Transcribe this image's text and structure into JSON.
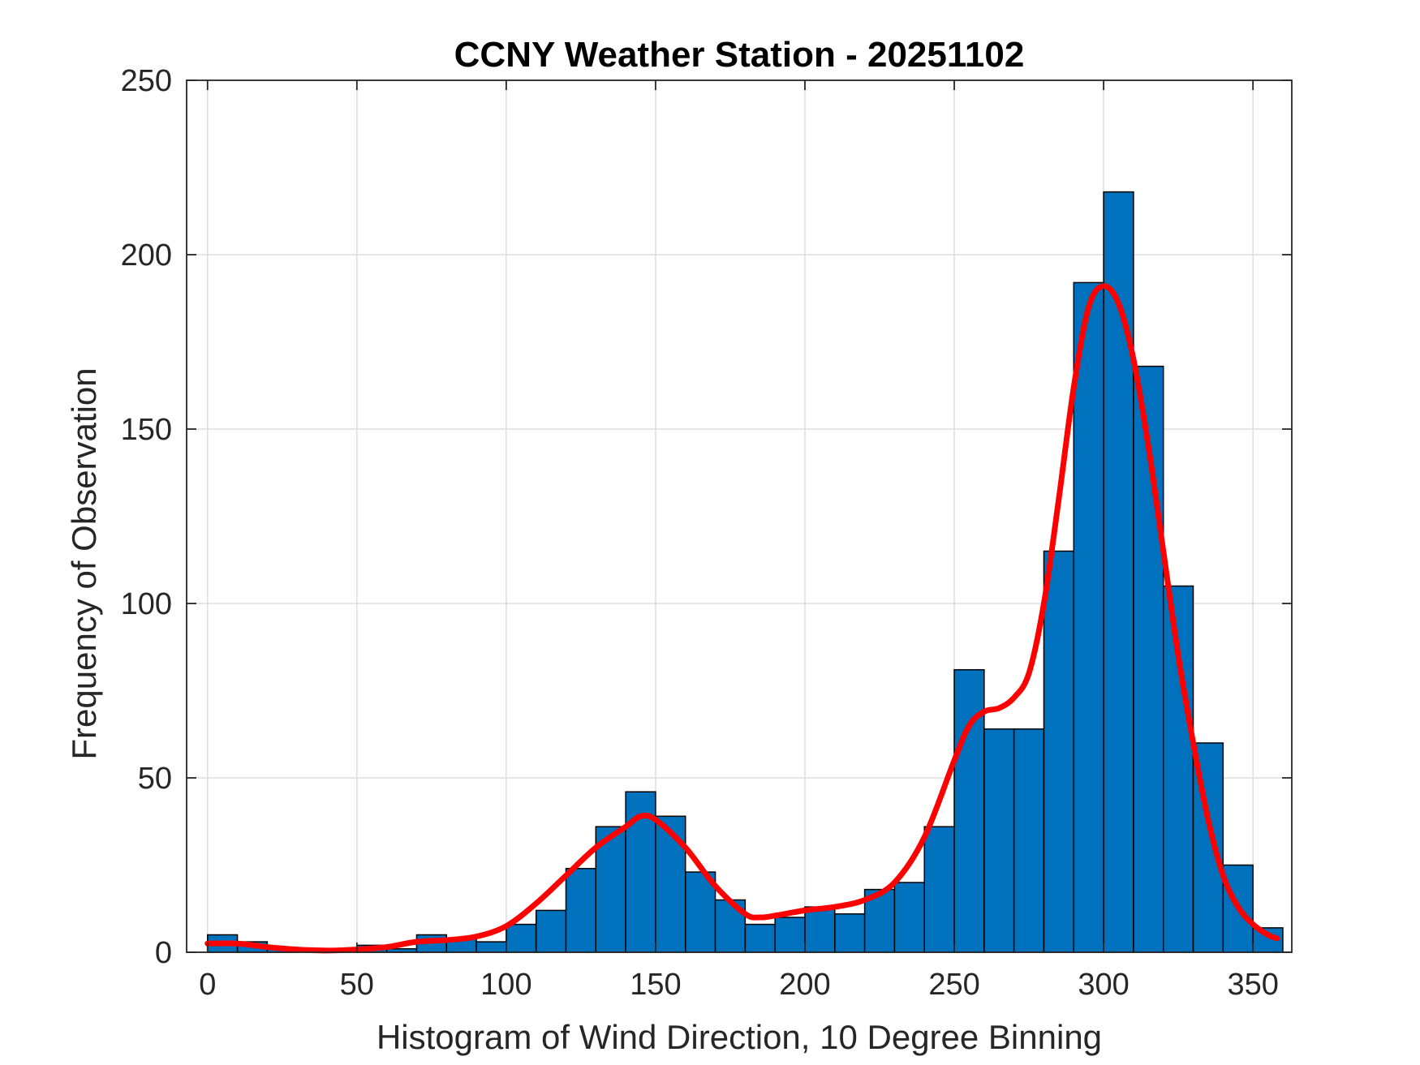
{
  "chart_data": {
    "type": "bar",
    "title": "CCNY Weather Station - 20251102",
    "xlabel": "Histogram of Wind Direction, 10 Degree Binning",
    "ylabel": "Frequency of Observation",
    "xlim": [
      -7,
      363
    ],
    "ylim": [
      0,
      250
    ],
    "xticks": [
      0,
      50,
      100,
      150,
      200,
      250,
      300,
      350
    ],
    "yticks": [
      0,
      50,
      100,
      150,
      200,
      250
    ],
    "grid": true,
    "bin_width": 10,
    "bin_edges": [
      0,
      10,
      20,
      30,
      40,
      50,
      60,
      70,
      80,
      90,
      100,
      110,
      120,
      130,
      140,
      150,
      160,
      170,
      180,
      190,
      200,
      210,
      220,
      230,
      240,
      250,
      260,
      270,
      280,
      290,
      300,
      310,
      320,
      330,
      340,
      350,
      360
    ],
    "values": [
      5,
      3,
      1,
      0,
      0,
      2,
      1,
      5,
      4,
      3,
      8,
      12,
      24,
      36,
      46,
      39,
      23,
      15,
      8,
      10,
      13,
      11,
      18,
      20,
      36,
      81,
      64,
      64,
      115,
      192,
      218,
      168,
      105,
      60,
      25,
      7
    ],
    "bar_color": "#0072BD",
    "edge_color": "#000000",
    "curve": {
      "color": "#FF0000",
      "x": [
        0,
        10,
        20,
        30,
        40,
        50,
        60,
        70,
        80,
        90,
        100,
        110,
        120,
        130,
        140,
        145,
        150,
        160,
        170,
        180,
        185,
        190,
        200,
        210,
        220,
        230,
        240,
        250,
        255,
        260,
        265,
        270,
        275,
        280,
        285,
        290,
        295,
        300,
        305,
        310,
        315,
        320,
        325,
        330,
        335,
        340,
        345,
        350,
        355,
        358
      ],
      "y": [
        2.5,
        2.5,
        1.5,
        0.8,
        0.5,
        0.8,
        1.5,
        3,
        3.5,
        4.5,
        7.5,
        14,
        22,
        30,
        36,
        39,
        38,
        30,
        19,
        11,
        10,
        10.5,
        12,
        13,
        15,
        20,
        33,
        55,
        65,
        69,
        70,
        73,
        80,
        100,
        130,
        162,
        185,
        191,
        186,
        170,
        145,
        115,
        85,
        60,
        38,
        22,
        13,
        8,
        5,
        4
      ]
    }
  }
}
